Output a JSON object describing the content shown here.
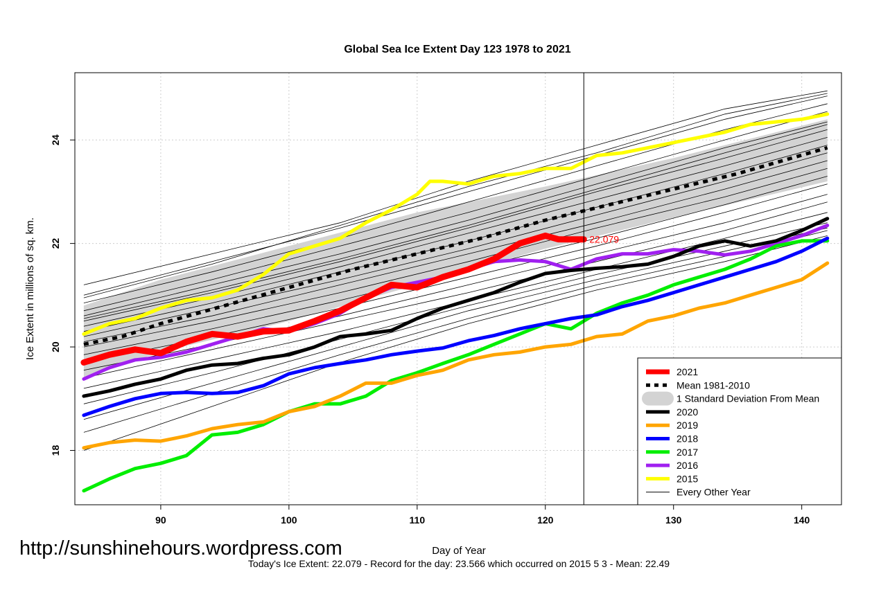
{
  "watermark": "http://sunshinehours.wordpress.com",
  "caption": "Today's Ice Extent: 22.079  - Record for the day: 23.566 which occurred on 2015 5 3  - Mean: 22.49",
  "chart_data": {
    "type": "line",
    "title": "Global Sea Ice Extent Day 123 1978 to 2021",
    "xlabel": "Day of Year",
    "ylabel": "Ice Extent in millions of sq. km.",
    "xlim": [
      83.3,
      143.1
    ],
    "ylim": [
      16.95,
      25.3
    ],
    "x_ticks": [
      90,
      100,
      110,
      120,
      130,
      140
    ],
    "y_ticks": [
      18,
      20,
      22,
      24
    ],
    "grid": true,
    "vline_day": 123,
    "end_label": "22.079",
    "legend_position": "bottom-right",
    "legend": [
      {
        "label": "2021",
        "color": "#ff0000",
        "style": "thick"
      },
      {
        "label": "Mean 1981-2010",
        "color": "#000000",
        "style": "dashed"
      },
      {
        "label": "1 Standard Deviation From Mean",
        "color": "#d3d3d3",
        "style": "band"
      },
      {
        "label": "2020",
        "color": "#000000",
        "style": "solid"
      },
      {
        "label": "2019",
        "color": "#ffa500",
        "style": "solid"
      },
      {
        "label": "2018",
        "color": "#0000ff",
        "style": "solid"
      },
      {
        "label": "2017",
        "color": "#00ee00",
        "style": "solid"
      },
      {
        "label": "2016",
        "color": "#a020f0",
        "style": "solid"
      },
      {
        "label": "2015",
        "color": "#ffff00",
        "style": "solid"
      },
      {
        "label": "Every Other Year",
        "color": "#000000",
        "style": "thin"
      }
    ],
    "band": {
      "x": [
        84,
        90,
        100,
        110,
        120,
        130,
        142
      ],
      "lower": [
        19.4,
        19.9,
        20.5,
        21.2,
        21.9,
        22.5,
        23.2
      ],
      "upper": [
        20.8,
        21.3,
        21.95,
        22.6,
        23.1,
        23.65,
        24.4
      ]
    },
    "mean": {
      "x": [
        84,
        87,
        90,
        95,
        100,
        105,
        110,
        115,
        120,
        125,
        130,
        135,
        142
      ],
      "y": [
        20.05,
        20.2,
        20.45,
        20.8,
        21.15,
        21.5,
        21.8,
        22.1,
        22.45,
        22.75,
        23.05,
        23.35,
        23.85
      ]
    },
    "series": [
      {
        "name": "2021",
        "color": "#ff0000",
        "width": 9,
        "x": [
          84,
          86,
          88,
          90,
          92,
          94,
          96,
          98,
          100,
          102,
          104,
          106,
          108,
          110,
          112,
          114,
          116,
          118,
          120,
          121,
          123
        ],
        "y": [
          19.7,
          19.85,
          19.95,
          19.88,
          20.1,
          20.25,
          20.2,
          20.3,
          20.32,
          20.5,
          20.7,
          20.95,
          21.2,
          21.15,
          21.35,
          21.5,
          21.7,
          22.0,
          22.15,
          22.08,
          22.079
        ]
      },
      {
        "name": "2020",
        "color": "#000000",
        "width": 5,
        "x": [
          84,
          86,
          88,
          90,
          92,
          94,
          96,
          98,
          100,
          102,
          104,
          106,
          108,
          110,
          112,
          114,
          116,
          118,
          120,
          122,
          124,
          126,
          128,
          130,
          132,
          134,
          136,
          138,
          140,
          142
        ],
        "y": [
          19.05,
          19.15,
          19.28,
          19.38,
          19.55,
          19.65,
          19.68,
          19.78,
          19.85,
          20.0,
          20.2,
          20.25,
          20.32,
          20.55,
          20.75,
          20.9,
          21.05,
          21.25,
          21.42,
          21.48,
          21.52,
          21.55,
          21.6,
          21.75,
          21.95,
          22.05,
          21.95,
          22.05,
          22.25,
          22.48
        ]
      },
      {
        "name": "2019",
        "color": "#ffa500",
        "width": 5,
        "x": [
          84,
          86,
          88,
          90,
          92,
          94,
          96,
          98,
          100,
          102,
          104,
          106,
          108,
          110,
          112,
          114,
          116,
          118,
          120,
          122,
          124,
          126,
          128,
          130,
          132,
          134,
          136,
          138,
          140,
          142
        ],
        "y": [
          18.05,
          18.15,
          18.2,
          18.18,
          18.28,
          18.42,
          18.5,
          18.55,
          18.75,
          18.85,
          19.05,
          19.3,
          19.3,
          19.45,
          19.55,
          19.75,
          19.85,
          19.9,
          20.0,
          20.05,
          20.2,
          20.25,
          20.5,
          20.6,
          20.75,
          20.85,
          21.0,
          21.15,
          21.3,
          21.62
        ]
      },
      {
        "name": "2018",
        "color": "#0000ff",
        "width": 5,
        "x": [
          84,
          86,
          88,
          90,
          92,
          94,
          96,
          98,
          100,
          102,
          104,
          106,
          108,
          110,
          112,
          114,
          116,
          118,
          120,
          122,
          124,
          126,
          128,
          130,
          132,
          134,
          136,
          138,
          140,
          142
        ],
        "y": [
          18.68,
          18.85,
          19.0,
          19.1,
          19.12,
          19.1,
          19.12,
          19.25,
          19.48,
          19.6,
          19.68,
          19.75,
          19.85,
          19.92,
          19.98,
          20.12,
          20.22,
          20.35,
          20.45,
          20.55,
          20.62,
          20.78,
          20.9,
          21.05,
          21.2,
          21.35,
          21.5,
          21.65,
          21.85,
          22.1
        ]
      },
      {
        "name": "2017",
        "color": "#00ee00",
        "width": 5,
        "x": [
          84,
          86,
          88,
          90,
          92,
          94,
          96,
          98,
          100,
          102,
          104,
          106,
          108,
          110,
          112,
          114,
          116,
          118,
          120,
          122,
          124,
          126,
          128,
          130,
          132,
          134,
          136,
          138,
          140,
          142
        ],
        "y": [
          17.22,
          17.45,
          17.65,
          17.75,
          17.9,
          18.3,
          18.35,
          18.5,
          18.75,
          18.9,
          18.9,
          19.05,
          19.35,
          19.5,
          19.68,
          19.85,
          20.05,
          20.25,
          20.45,
          20.35,
          20.65,
          20.85,
          21.0,
          21.2,
          21.35,
          21.5,
          21.7,
          21.95,
          22.05,
          22.05
        ]
      },
      {
        "name": "2016",
        "color": "#a020f0",
        "width": 5,
        "x": [
          84,
          86,
          88,
          90,
          92,
          94,
          96,
          98,
          100,
          102,
          104,
          106,
          108,
          110,
          112,
          114,
          116,
          118,
          120,
          122,
          124,
          126,
          128,
          130,
          132,
          134,
          136,
          138,
          140,
          142
        ],
        "y": [
          19.38,
          19.6,
          19.75,
          19.8,
          19.9,
          20.05,
          20.2,
          20.35,
          20.3,
          20.45,
          20.65,
          20.95,
          21.15,
          21.25,
          21.35,
          21.5,
          21.65,
          21.68,
          21.65,
          21.5,
          21.7,
          21.8,
          21.8,
          21.88,
          21.85,
          21.78,
          21.85,
          22.0,
          22.15,
          22.35
        ]
      },
      {
        "name": "2015",
        "color": "#ffff00",
        "width": 5,
        "x": [
          84,
          86,
          88,
          90,
          92,
          94,
          96,
          98,
          100,
          102,
          104,
          106,
          108,
          110,
          111,
          112,
          114,
          116,
          118,
          120,
          122,
          124,
          126,
          128,
          130,
          132,
          134,
          136,
          138,
          140,
          142
        ],
        "y": [
          20.25,
          20.45,
          20.55,
          20.75,
          20.9,
          20.95,
          21.1,
          21.4,
          21.8,
          21.95,
          22.1,
          22.4,
          22.65,
          22.95,
          23.2,
          23.2,
          23.15,
          23.3,
          23.35,
          23.45,
          23.45,
          23.7,
          23.75,
          23.85,
          23.95,
          24.05,
          24.15,
          24.3,
          24.35,
          24.4,
          24.5
        ]
      }
    ],
    "thin_series": [
      {
        "name": "other-01",
        "x": [
          84,
          94,
          104,
          114,
          124,
          134,
          142
        ],
        "y": [
          21.2,
          21.8,
          22.4,
          23.2,
          23.9,
          24.6,
          24.95
        ]
      },
      {
        "name": "other-02",
        "x": [
          84,
          94,
          104,
          114,
          124,
          134,
          142
        ],
        "y": [
          21.0,
          21.65,
          22.3,
          23.0,
          23.7,
          24.4,
          24.85
        ]
      },
      {
        "name": "other-03",
        "x": [
          84,
          94,
          104,
          114,
          124,
          134,
          142
        ],
        "y": [
          20.85,
          21.45,
          22.1,
          22.8,
          23.5,
          24.2,
          24.7
        ]
      },
      {
        "name": "other-04",
        "x": [
          84,
          94,
          104,
          114,
          124,
          134,
          142
        ],
        "y": [
          20.7,
          21.3,
          21.95,
          22.6,
          23.3,
          24.0,
          24.55
        ]
      },
      {
        "name": "other-05",
        "x": [
          84,
          94,
          104,
          114,
          124,
          134,
          142
        ],
        "y": [
          20.6,
          21.2,
          21.8,
          22.45,
          23.15,
          23.85,
          24.35
        ]
      },
      {
        "name": "other-06",
        "x": [
          84,
          94,
          104,
          114,
          124,
          134,
          142
        ],
        "y": [
          20.5,
          21.05,
          21.65,
          22.3,
          23.0,
          23.65,
          24.2
        ]
      },
      {
        "name": "other-07",
        "x": [
          84,
          94,
          104,
          114,
          124,
          134,
          142
        ],
        "y": [
          20.4,
          20.95,
          21.55,
          22.2,
          22.85,
          23.5,
          24.05
        ]
      },
      {
        "name": "other-08",
        "x": [
          84,
          94,
          104,
          114,
          124,
          134,
          142
        ],
        "y": [
          20.3,
          20.85,
          21.45,
          22.05,
          22.7,
          23.35,
          23.9
        ]
      },
      {
        "name": "other-09",
        "x": [
          84,
          94,
          104,
          114,
          124,
          134,
          142
        ],
        "y": [
          20.2,
          20.75,
          21.3,
          21.9,
          22.55,
          23.2,
          23.75
        ]
      },
      {
        "name": "other-10",
        "x": [
          84,
          94,
          104,
          114,
          124,
          134,
          142
        ],
        "y": [
          20.1,
          20.6,
          21.2,
          21.8,
          22.4,
          23.05,
          23.6
        ]
      },
      {
        "name": "other-11",
        "x": [
          84,
          94,
          104,
          114,
          124,
          134,
          142
        ],
        "y": [
          20.0,
          20.5,
          21.05,
          21.65,
          22.3,
          22.9,
          23.45
        ]
      },
      {
        "name": "other-12",
        "x": [
          84,
          94,
          104,
          114,
          124,
          134,
          142
        ],
        "y": [
          19.85,
          20.35,
          20.9,
          21.5,
          22.1,
          22.75,
          23.3
        ]
      },
      {
        "name": "other-13",
        "x": [
          84,
          94,
          104,
          114,
          124,
          134,
          142
        ],
        "y": [
          19.7,
          20.2,
          20.75,
          21.35,
          21.95,
          22.6,
          23.15
        ]
      },
      {
        "name": "other-14",
        "x": [
          84,
          94,
          104,
          114,
          124,
          134,
          142
        ],
        "y": [
          19.55,
          20.05,
          20.6,
          21.2,
          21.8,
          22.4,
          22.95
        ]
      },
      {
        "name": "other-15",
        "x": [
          84,
          94,
          104,
          114,
          124,
          134,
          142
        ],
        "y": [
          19.4,
          19.95,
          20.5,
          21.05,
          21.65,
          22.25,
          22.8
        ]
      },
      {
        "name": "other-16",
        "x": [
          84,
          94,
          104,
          114,
          124,
          134,
          142
        ],
        "y": [
          19.2,
          19.75,
          20.3,
          20.9,
          21.5,
          22.1,
          22.6
        ]
      },
      {
        "name": "other-17",
        "x": [
          84,
          94,
          104,
          114,
          124,
          134,
          142
        ],
        "y": [
          18.9,
          19.5,
          20.15,
          20.8,
          21.4,
          21.95,
          22.4
        ]
      },
      {
        "name": "other-18",
        "x": [
          84,
          94,
          104,
          114,
          124,
          134,
          142
        ],
        "y": [
          18.6,
          19.3,
          20.0,
          20.7,
          21.3,
          21.85,
          22.3
        ]
      },
      {
        "name": "other-19",
        "x": [
          84,
          94,
          104,
          114,
          124,
          134,
          142
        ],
        "y": [
          18.35,
          19.1,
          19.85,
          20.55,
          21.2,
          21.75,
          22.25
        ]
      },
      {
        "name": "other-20",
        "x": [
          84,
          94,
          104,
          114,
          124,
          134,
          142
        ],
        "y": [
          18.0,
          18.85,
          19.7,
          20.45,
          21.1,
          21.65,
          22.15
        ]
      },
      {
        "name": "other-21",
        "x": [
          84,
          94,
          104,
          114,
          124,
          134,
          142
        ],
        "y": [
          20.95,
          21.6,
          22.35,
          23.1,
          23.75,
          24.5,
          24.9
        ]
      },
      {
        "name": "other-22",
        "x": [
          84,
          94,
          104,
          114,
          124,
          134,
          142
        ],
        "y": [
          20.55,
          21.1,
          21.7,
          22.35,
          23.05,
          23.75,
          24.3
        ]
      }
    ]
  }
}
